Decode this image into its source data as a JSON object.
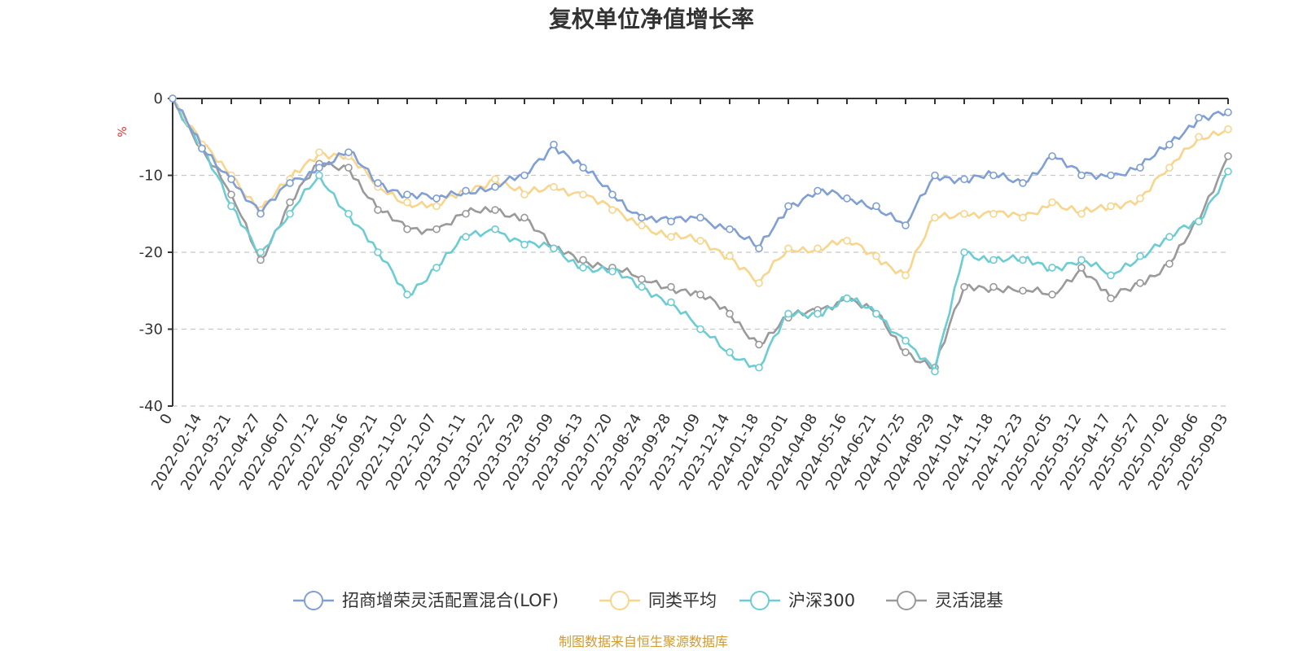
{
  "chart_data": {
    "type": "line",
    "title": "复权单位净值增长率",
    "y_unit": "%",
    "ylim": [
      -40,
      0
    ],
    "y_ticks": [
      0,
      -10,
      -20,
      -30,
      -40
    ],
    "grid": true,
    "legend_position": "bottom",
    "x_start_label": "0",
    "x_tick_labels": [
      "2022-02-14",
      "2022-03-21",
      "2022-04-27",
      "2022-06-07",
      "2022-07-12",
      "2022-08-16",
      "2022-09-21",
      "2022-11-02",
      "2022-12-07",
      "2023-01-11",
      "2023-02-22",
      "2023-03-29",
      "2023-05-09",
      "2023-06-13",
      "2023-07-20",
      "2023-08-24",
      "2023-09-28",
      "2023-11-09",
      "2023-12-14",
      "2024-01-18",
      "2024-03-01",
      "2024-04-08",
      "2024-05-16",
      "2024-06-21",
      "2024-07-25",
      "2024-08-29",
      "2024-10-14",
      "2024-11-18",
      "2024-12-23",
      "2025-02-05",
      "2025-03-12",
      "2025-04-17",
      "2025-05-27",
      "2025-07-02",
      "2025-08-06",
      "2025-09-03"
    ],
    "x": [
      "0",
      "2022-02-14",
      "2022-03-21",
      "2022-04-27",
      "2022-06-07",
      "2022-07-12",
      "2022-08-16",
      "2022-09-21",
      "2022-11-02",
      "2022-12-07",
      "2023-01-11",
      "2023-02-22",
      "2023-03-29",
      "2023-05-09",
      "2023-06-13",
      "2023-07-20",
      "2023-08-24",
      "2023-09-28",
      "2023-11-09",
      "2023-12-14",
      "2024-01-18",
      "2024-03-01",
      "2024-04-08",
      "2024-05-16",
      "2024-06-21",
      "2024-07-25",
      "2024-08-29",
      "2024-10-14",
      "2024-11-18",
      "2024-12-23",
      "2025-02-05",
      "2025-03-12",
      "2025-04-17",
      "2025-05-27",
      "2025-07-02",
      "2025-08-06",
      "2025-09-03"
    ],
    "series": [
      {
        "name": "招商增荣灵活配置混合(LOF)",
        "color": "#7f9fd6",
        "values": [
          0,
          -6.5,
          -10.5,
          -15,
          -11,
          -9,
          -7,
          -11,
          -12.5,
          -13,
          -12,
          -11.5,
          -10,
          -6,
          -9,
          -12.5,
          -15.5,
          -16,
          -15.5,
          -17,
          -19.5,
          -14,
          -12,
          -13,
          -14,
          -16.5,
          -10,
          -10.5,
          -10,
          -11,
          -7.5,
          -10,
          -10,
          -9,
          -6,
          -2.5,
          -1.8
        ]
      },
      {
        "name": "同类平均",
        "color": "#f9d58b",
        "values": [
          0,
          -6,
          -10,
          -14.5,
          -10.5,
          -7,
          -7.5,
          -11.5,
          -13.5,
          -14,
          -12,
          -10.5,
          -12.5,
          -11.5,
          -12.5,
          -14.5,
          -16.5,
          -18,
          -18.5,
          -20.5,
          -24,
          -19.5,
          -19.5,
          -18.5,
          -20.5,
          -23,
          -15.5,
          -15,
          -15,
          -15.5,
          -13.5,
          -15,
          -14,
          -13,
          -9,
          -5,
          -4
        ]
      },
      {
        "name": "沪深300",
        "color": "#6cccd4",
        "values": [
          0,
          -6.5,
          -14,
          -20,
          -15,
          -10,
          -15,
          -20,
          -25.5,
          -22,
          -18,
          -17,
          -19,
          -19.5,
          -22,
          -22.5,
          -24.5,
          -26.5,
          -30,
          -33,
          -35,
          -28,
          -28,
          -26,
          -28,
          -31.5,
          -35.5,
          -20,
          -21,
          -21,
          -22,
          -21,
          -23,
          -20.5,
          -18,
          -16,
          -9.5
        ]
      },
      {
        "name": "灵活混基",
        "color": "#9a9a9a",
        "values": [
          0,
          -6.5,
          -12.5,
          -21,
          -13.5,
          -8.5,
          -9,
          -14.5,
          -17,
          -17,
          -15,
          -14.5,
          -15.5,
          -19.5,
          -21,
          -22,
          -23.5,
          -24.5,
          -25.5,
          -28,
          -32,
          -28.5,
          -27.5,
          -26,
          -28,
          -33,
          -35,
          -24.5,
          -24.5,
          -25,
          -25.5,
          -22,
          -26,
          -24,
          -21.5,
          -16,
          -7.5
        ]
      }
    ]
  },
  "legend_items": [
    {
      "label": "招商增荣灵活配置混合(LOF)"
    },
    {
      "label": "同类平均"
    },
    {
      "label": "沪深300"
    },
    {
      "label": "灵活混基"
    }
  ],
  "source_note": "制图数据来自恒生聚源数据库",
  "colors": {
    "source_note": "#d39a2c",
    "y_unit": "#e03030"
  }
}
